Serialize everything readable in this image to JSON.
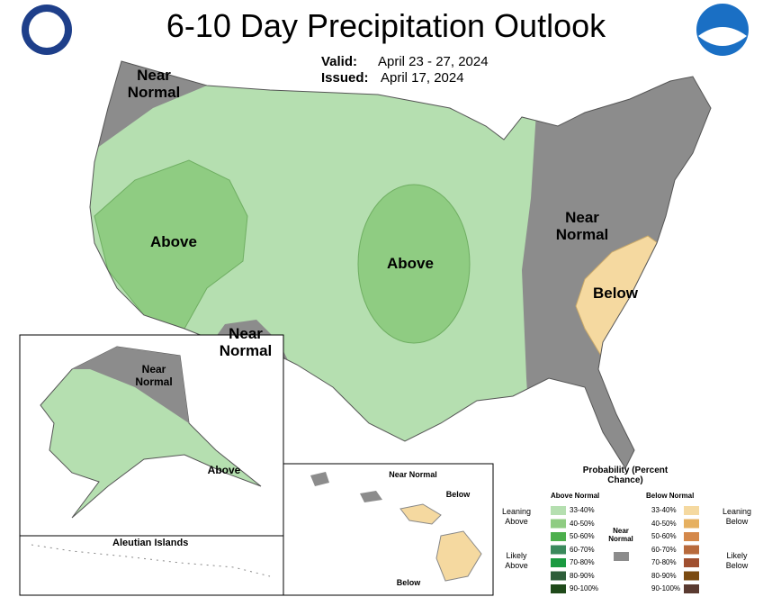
{
  "header": {
    "title": "6-10 Day Precipitation Outlook",
    "valid_label": "Valid:",
    "valid": "April 23 - 27, 2024",
    "issued_label": "Issued:",
    "issued": "April 17, 2024"
  },
  "conus_labels": [
    "Near Normal",
    "Above",
    "Above",
    "Near Normal",
    "Near Normal",
    "Below"
  ],
  "alaska": {
    "labels": [
      "Near Normal",
      "Above"
    ],
    "aleutian": "Aleutian Islands"
  },
  "hawaii": {
    "labels": [
      "Near Normal",
      "Below",
      "Below"
    ]
  },
  "legend": {
    "title": "Probability (Percent Chance)",
    "above_heading": "Above Normal",
    "below_heading": "Below Normal",
    "near": "Near Normal",
    "leaning_above": "Leaning Above",
    "likely_above": "Likely Above",
    "leaning_below": "Leaning Below",
    "likely_below": "Likely Below",
    "above_ranges": [
      "33-40%",
      "40-50%",
      "50-60%",
      "60-70%",
      "70-80%",
      "80-90%",
      "90-100%"
    ],
    "below_ranges": [
      "33-40%",
      "40-50%",
      "50-60%",
      "60-70%",
      "70-80%",
      "80-90%",
      "90-100%"
    ]
  }
}
